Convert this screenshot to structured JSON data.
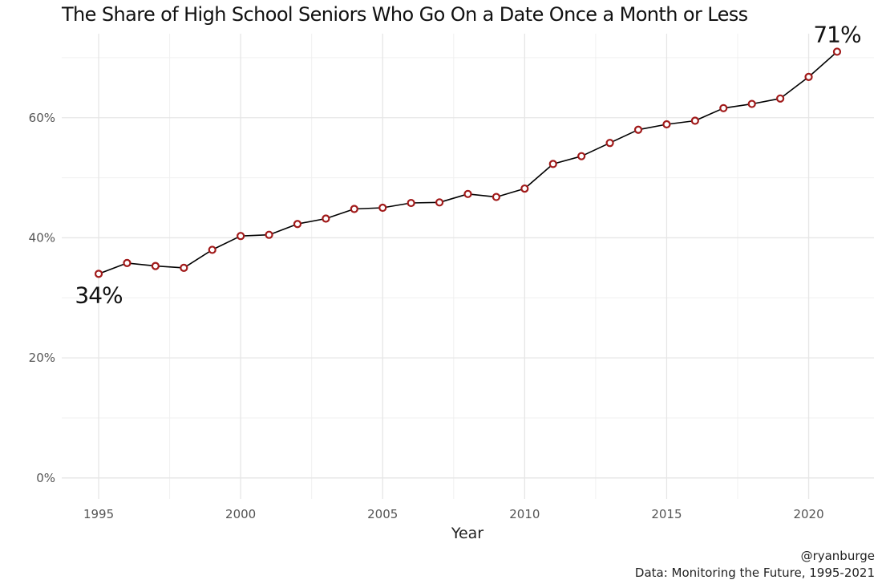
{
  "chart_data": {
    "type": "line",
    "title": "The Share of High School Seniors Who Go On a Date Once a Month or Less",
    "xlabel": "Year",
    "ylabel": "",
    "xlim": [
      1993.7,
      2022.3
    ],
    "ylim": [
      -3.5,
      74
    ],
    "x_ticks": [
      1995,
      2000,
      2005,
      2010,
      2015,
      2020
    ],
    "x_tick_labels": [
      "1995",
      "2000",
      "2005",
      "2010",
      "2015",
      "2020"
    ],
    "y_ticks": [
      0,
      20,
      40,
      60
    ],
    "y_tick_labels": [
      "0%",
      "20%",
      "40%",
      "60%"
    ],
    "grid": true,
    "legend": "none",
    "series": [
      {
        "x": [
          1995,
          1996,
          1997,
          1998,
          1999,
          2000,
          2001,
          2002,
          2003,
          2004,
          2005,
          2006,
          2007,
          2008,
          2009,
          2010,
          2011,
          2012,
          2013,
          2014,
          2015,
          2016,
          2017,
          2018,
          2019,
          2020,
          2021
        ],
        "values": [
          34.0,
          35.8,
          35.3,
          35.0,
          38.0,
          40.3,
          40.5,
          42.3,
          43.2,
          44.8,
          45.0,
          45.8,
          45.9,
          47.3,
          46.8,
          48.2,
          52.3,
          53.6,
          55.8,
          58.0,
          58.9,
          59.5,
          61.6,
          62.3,
          63.2,
          66.8,
          71.0
        ],
        "color": "#000000",
        "marker_color": "#a11a1a"
      }
    ],
    "annotations": [
      {
        "text": "34%",
        "x": 1995,
        "y": 34.0,
        "position": "below"
      },
      {
        "text": "71%",
        "x": 2021,
        "y": 71.0,
        "position": "above"
      }
    ]
  },
  "caption": {
    "handle": "@ryanburge",
    "source": "Data: Monitoring the Future, 1995-2021"
  }
}
